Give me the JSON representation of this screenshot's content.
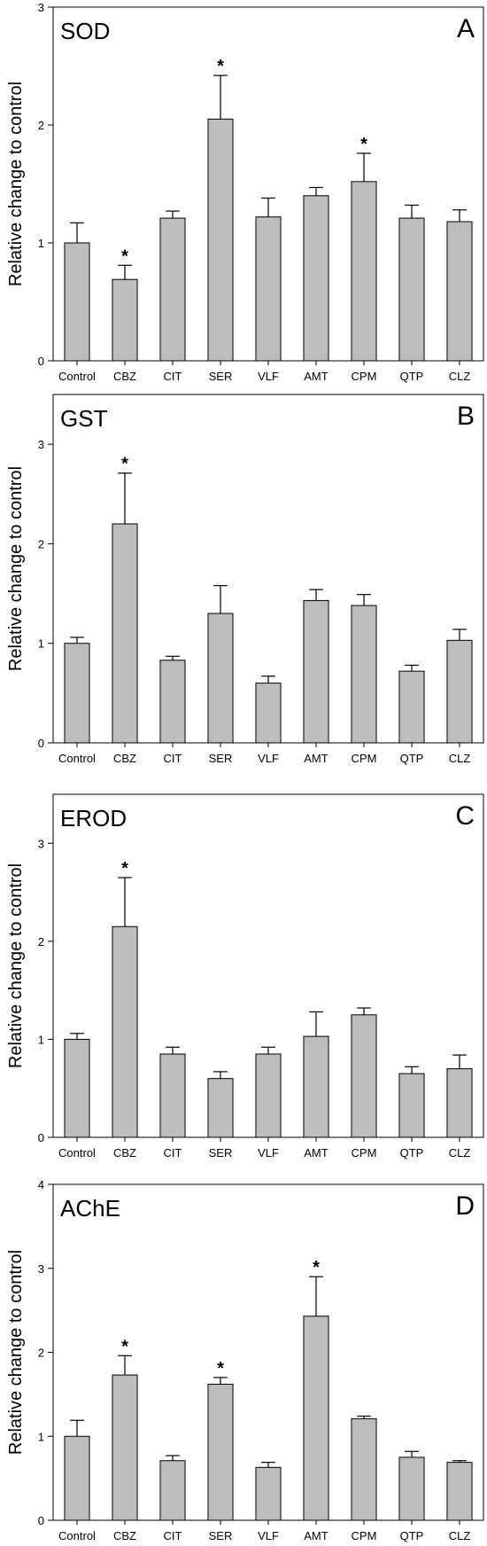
{
  "chart_data": [
    {
      "type": "bar",
      "title": "SOD",
      "panel": "A",
      "ylabel": "Relative change to control",
      "categories": [
        "Control",
        "CBZ",
        "CIT",
        "SER",
        "VLF",
        "AMT",
        "CPM",
        "QTP",
        "CLZ"
      ],
      "values": [
        1.0,
        0.69,
        1.21,
        2.05,
        1.22,
        1.4,
        1.52,
        1.21,
        1.18
      ],
      "errors": [
        0.17,
        0.12,
        0.06,
        0.37,
        0.16,
        0.07,
        0.24,
        0.11,
        0.1
      ],
      "significant": [
        false,
        true,
        false,
        true,
        false,
        false,
        true,
        false,
        false
      ],
      "ylim": [
        0,
        3
      ],
      "yticks": [
        "0",
        "1",
        "2",
        "3"
      ],
      "grid": false
    },
    {
      "type": "bar",
      "title": "GST",
      "panel": "B",
      "ylabel": "Relative change to control",
      "categories": [
        "Control",
        "CBZ",
        "CIT",
        "SER",
        "VLF",
        "AMT",
        "CPM",
        "QTP",
        "CLZ"
      ],
      "values": [
        1.0,
        2.2,
        0.83,
        1.3,
        0.6,
        1.43,
        1.38,
        0.72,
        1.03
      ],
      "errors": [
        0.06,
        0.51,
        0.04,
        0.28,
        0.07,
        0.11,
        0.11,
        0.06,
        0.11
      ],
      "significant": [
        false,
        true,
        false,
        false,
        false,
        false,
        false,
        false,
        false
      ],
      "ylim": [
        0,
        3.5
      ],
      "yticks": [
        "0",
        "1",
        "2",
        "3"
      ],
      "grid": false
    },
    {
      "type": "bar",
      "title": "EROD",
      "panel": "C",
      "ylabel": "Relative change to control",
      "categories": [
        "Control",
        "CBZ",
        "CIT",
        "SER",
        "VLF",
        "AMT",
        "CPM",
        "QTP",
        "CLZ"
      ],
      "values": [
        1.0,
        2.15,
        0.85,
        0.6,
        0.85,
        1.03,
        1.25,
        0.65,
        0.7
      ],
      "errors": [
        0.06,
        0.5,
        0.07,
        0.07,
        0.07,
        0.25,
        0.07,
        0.07,
        0.14
      ],
      "significant": [
        false,
        true,
        false,
        false,
        false,
        false,
        false,
        false,
        false
      ],
      "ylim": [
        0,
        3.5
      ],
      "yticks": [
        "0",
        "1",
        "2",
        "3"
      ],
      "grid": false
    },
    {
      "type": "bar",
      "title": "AChE",
      "panel": "D",
      "ylabel": "Relative change to control",
      "categories": [
        "Control",
        "CBZ",
        "CIT",
        "SER",
        "VLF",
        "AMT",
        "CPM",
        "QTP",
        "CLZ"
      ],
      "values": [
        1.0,
        1.73,
        0.71,
        1.62,
        0.63,
        2.43,
        1.21,
        0.75,
        0.69
      ],
      "errors": [
        0.19,
        0.23,
        0.06,
        0.08,
        0.06,
        0.47,
        0.03,
        0.07,
        0.02
      ],
      "significant": [
        false,
        true,
        false,
        true,
        false,
        true,
        false,
        false,
        false
      ],
      "ylim": [
        0,
        4
      ],
      "yticks": [
        "0",
        "1",
        "2",
        "3",
        "4"
      ],
      "grid": false
    }
  ],
  "style": {
    "bar_color": "#bdbdbd",
    "bar_stroke": "#000000",
    "star": "*"
  }
}
